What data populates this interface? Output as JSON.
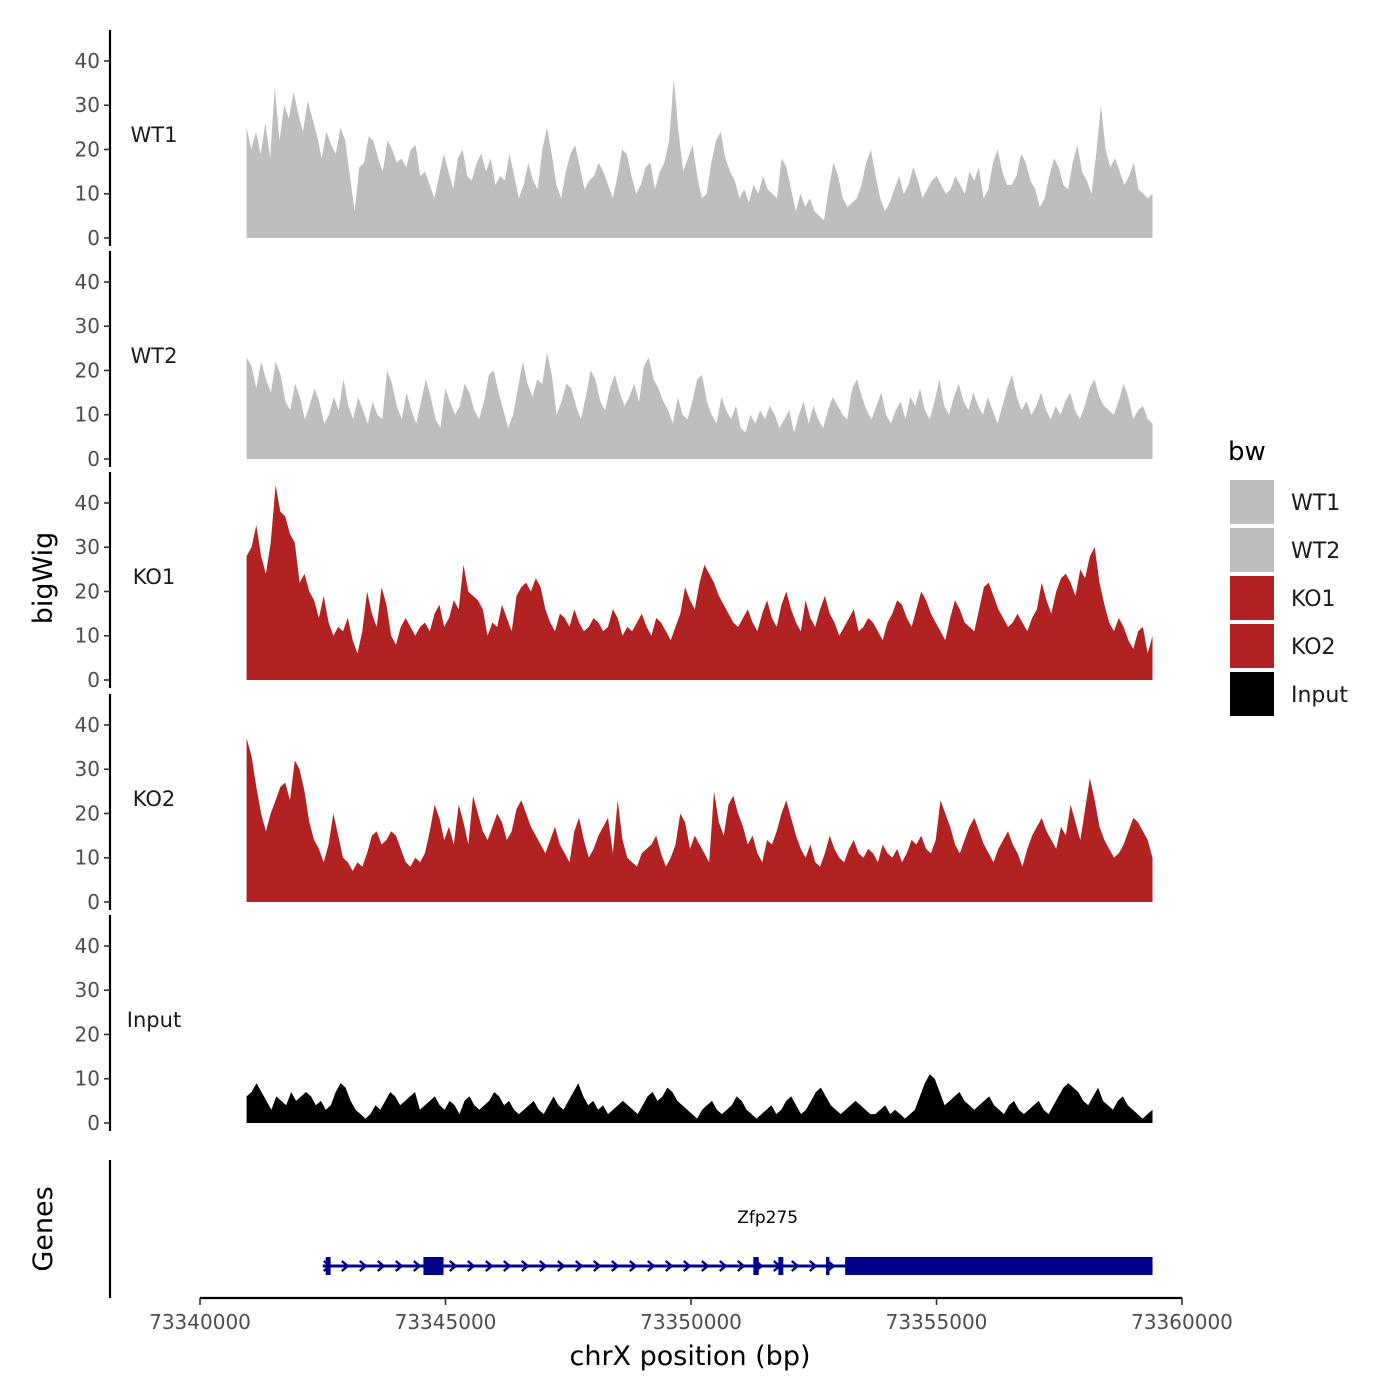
{
  "chart_data": {
    "type": "area",
    "y_axis_title": "bigWig",
    "x_axis_title": "chrX position (bp)",
    "genes_axis_title": "Genes",
    "xlim": [
      73340000,
      73360000
    ],
    "x_ticks": [
      73340000,
      73345000,
      73350000,
      73355000,
      73360000
    ],
    "x_tick_labels": [
      "73340000",
      "73345000",
      "73350000",
      "73355000",
      "73360000"
    ],
    "ylim": [
      0,
      47
    ],
    "y_ticks": [
      0,
      10,
      20,
      30,
      40
    ],
    "y_tick_labels": [
      "0",
      "10",
      "20",
      "30",
      "40"
    ],
    "data_x_range": [
      73340950,
      73359400
    ],
    "grid": false,
    "legend": {
      "title": "bw",
      "position": "right",
      "entries": [
        {
          "label": "WT1",
          "color": "#bebebe"
        },
        {
          "label": "WT2",
          "color": "#bebebe"
        },
        {
          "label": "KO1",
          "color": "#b22222"
        },
        {
          "label": "KO2",
          "color": "#b22222"
        },
        {
          "label": "Input",
          "color": "#000000"
        }
      ]
    },
    "series": [
      {
        "name": "WT1",
        "color": "#bebebe",
        "values": [
          25,
          20,
          24,
          19,
          26,
          18,
          34,
          22,
          30,
          27,
          33,
          28,
          24,
          31,
          27,
          23,
          18,
          24,
          21,
          19,
          25,
          22,
          14,
          6,
          16,
          17,
          23,
          22,
          18,
          15,
          22,
          20,
          17,
          18,
          16,
          20,
          21,
          14,
          15,
          12,
          9,
          14,
          19,
          15,
          11,
          18,
          20,
          14,
          13,
          17,
          19,
          15,
          18,
          12,
          14,
          13,
          19,
          14,
          9,
          12,
          17,
          13,
          11,
          20,
          25,
          19,
          12,
          9,
          15,
          19,
          21,
          16,
          11,
          13,
          14,
          17,
          15,
          12,
          9,
          14,
          20,
          19,
          14,
          10,
          12,
          16,
          17,
          11,
          15,
          17,
          22,
          36,
          24,
          15,
          18,
          21,
          14,
          9,
          10,
          17,
          22,
          24,
          18,
          15,
          13,
          9,
          11,
          8,
          12,
          10,
          14,
          11,
          10,
          9,
          18,
          16,
          11,
          6,
          10,
          7,
          9,
          6,
          5,
          4,
          11,
          17,
          14,
          9,
          7,
          8,
          9,
          12,
          17,
          20,
          14,
          9,
          6,
          8,
          11,
          14,
          10,
          12,
          16,
          13,
          9,
          11,
          13,
          14,
          12,
          10,
          11,
          14,
          12,
          10,
          15,
          13,
          16,
          9,
          11,
          17,
          20,
          15,
          12,
          12,
          14,
          19,
          17,
          13,
          11,
          7,
          9,
          14,
          18,
          16,
          12,
          11,
          17,
          21,
          15,
          13,
          10,
          19,
          30,
          20,
          16,
          18,
          15,
          12,
          14,
          17,
          11,
          10,
          9,
          10
        ]
      },
      {
        "name": "WT2",
        "color": "#bebebe",
        "values": [
          23,
          21,
          16,
          22,
          18,
          15,
          22,
          19,
          13,
          11,
          17,
          14,
          9,
          12,
          16,
          13,
          8,
          10,
          14,
          11,
          18,
          12,
          9,
          14,
          11,
          8,
          13,
          10,
          9,
          20,
          17,
          12,
          9,
          15,
          11,
          8,
          13,
          18,
          14,
          9,
          7,
          16,
          13,
          10,
          12,
          17,
          15,
          11,
          9,
          13,
          19,
          20,
          15,
          11,
          7,
          10,
          16,
          22,
          17,
          14,
          18,
          17,
          24,
          19,
          10,
          13,
          17,
          16,
          12,
          9,
          14,
          20,
          18,
          13,
          11,
          16,
          19,
          15,
          12,
          14,
          17,
          13,
          21,
          23,
          18,
          16,
          13,
          11,
          8,
          14,
          10,
          9,
          13,
          18,
          19,
          13,
          10,
          8,
          14,
          11,
          9,
          12,
          7,
          6,
          10,
          8,
          11,
          9,
          12,
          10,
          7,
          9,
          11,
          6,
          10,
          13,
          8,
          12,
          9,
          7,
          11,
          14,
          12,
          10,
          9,
          16,
          18,
          14,
          11,
          9,
          12,
          15,
          10,
          8,
          11,
          13,
          9,
          14,
          12,
          16,
          11,
          9,
          13,
          18,
          12,
          10,
          14,
          17,
          13,
          11,
          15,
          12,
          10,
          14,
          11,
          8,
          12,
          16,
          19,
          14,
          11,
          13,
          10,
          12,
          15,
          11,
          9,
          12,
          10,
          13,
          15,
          11,
          9,
          12,
          16,
          18,
          14,
          12,
          11,
          10,
          13,
          17,
          14,
          9,
          11,
          12,
          9,
          8
        ]
      },
      {
        "name": "KO1",
        "color": "#b22222",
        "values": [
          28,
          30,
          35,
          28,
          24,
          31,
          44,
          38,
          37,
          33,
          31,
          22,
          24,
          20,
          18,
          14,
          19,
          13,
          10,
          12,
          11,
          14,
          9,
          6,
          11,
          20,
          15,
          12,
          21,
          17,
          10,
          8,
          12,
          14,
          12,
          10,
          12,
          13,
          11,
          15,
          17,
          12,
          14,
          18,
          16,
          26,
          20,
          19,
          18,
          16,
          10,
          13,
          12,
          17,
          14,
          11,
          19,
          21,
          22,
          20,
          23,
          21,
          16,
          13,
          11,
          15,
          14,
          12,
          16,
          13,
          11,
          12,
          14,
          13,
          11,
          12,
          16,
          14,
          10,
          12,
          11,
          13,
          15,
          12,
          10,
          14,
          13,
          11,
          9,
          12,
          15,
          21,
          18,
          16,
          22,
          26,
          24,
          22,
          19,
          17,
          15,
          13,
          12,
          14,
          16,
          13,
          11,
          15,
          18,
          14,
          12,
          17,
          20,
          16,
          13,
          11,
          18,
          14,
          12,
          16,
          19,
          15,
          13,
          10,
          12,
          14,
          16,
          11,
          12,
          14,
          13,
          11,
          9,
          13,
          15,
          18,
          17,
          14,
          12,
          16,
          20,
          18,
          15,
          13,
          11,
          9,
          14,
          18,
          16,
          13,
          12,
          11,
          16,
          21,
          22,
          19,
          16,
          14,
          12,
          13,
          15,
          13,
          11,
          14,
          16,
          22,
          18,
          15,
          20,
          23,
          24,
          22,
          19,
          25,
          23,
          28,
          30,
          22,
          17,
          13,
          11,
          14,
          12,
          9,
          7,
          11,
          12,
          6,
          10
        ]
      },
      {
        "name": "KO2",
        "color": "#b22222",
        "values": [
          37,
          33,
          26,
          20,
          16,
          20,
          23,
          26,
          27,
          23,
          32,
          30,
          25,
          18,
          14,
          12,
          9,
          13,
          20,
          15,
          10,
          9,
          7,
          9,
          8,
          11,
          15,
          16,
          13,
          14,
          16,
          15,
          12,
          9,
          8,
          10,
          9,
          11,
          16,
          22,
          19,
          14,
          17,
          13,
          22,
          18,
          13,
          24,
          20,
          16,
          14,
          17,
          20,
          18,
          14,
          16,
          21,
          23,
          20,
          17,
          15,
          13,
          11,
          14,
          17,
          13,
          11,
          9,
          16,
          19,
          14,
          10,
          12,
          15,
          17,
          19,
          11,
          23,
          14,
          10,
          9,
          8,
          11,
          12,
          13,
          15,
          11,
          8,
          10,
          13,
          20,
          18,
          12,
          15,
          13,
          11,
          9,
          25,
          18,
          15,
          22,
          24,
          20,
          17,
          13,
          15,
          11,
          9,
          14,
          13,
          16,
          20,
          23,
          19,
          15,
          12,
          10,
          13,
          9,
          8,
          11,
          15,
          12,
          10,
          9,
          12,
          14,
          11,
          10,
          12,
          11,
          9,
          13,
          11,
          10,
          12,
          9,
          11,
          14,
          13,
          15,
          12,
          11,
          14,
          23,
          20,
          17,
          13,
          11,
          14,
          17,
          19,
          16,
          13,
          11,
          9,
          12,
          14,
          16,
          13,
          11,
          8,
          12,
          15,
          17,
          19,
          16,
          14,
          12,
          17,
          15,
          22,
          18,
          14,
          21,
          28,
          23,
          17,
          14,
          12,
          10,
          11,
          13,
          16,
          19,
          18,
          16,
          14,
          10
        ]
      },
      {
        "name": "Input",
        "color": "#000000",
        "values": [
          6,
          7,
          9,
          7,
          5,
          3,
          6,
          5,
          4,
          7,
          5,
          6,
          7,
          6,
          4,
          5,
          3,
          4,
          7,
          9,
          8,
          5,
          3,
          2,
          1,
          2,
          4,
          3,
          5,
          7,
          6,
          4,
          5,
          6,
          7,
          3,
          4,
          5,
          6,
          4,
          3,
          5,
          4,
          2,
          5,
          6,
          4,
          3,
          4,
          5,
          7,
          6,
          4,
          5,
          3,
          2,
          3,
          4,
          5,
          3,
          2,
          4,
          6,
          4,
          3,
          5,
          7,
          9,
          6,
          4,
          5,
          3,
          4,
          2,
          3,
          4,
          5,
          4,
          3,
          2,
          4,
          6,
          7,
          5,
          6,
          8,
          7,
          5,
          4,
          3,
          2,
          1,
          3,
          4,
          5,
          3,
          2,
          3,
          4,
          6,
          5,
          3,
          2,
          1,
          2,
          3,
          4,
          2,
          3,
          5,
          6,
          4,
          2,
          3,
          5,
          7,
          8,
          6,
          4,
          3,
          2,
          3,
          4,
          5,
          4,
          3,
          2,
          2,
          3,
          4,
          2,
          3,
          2,
          1,
          2,
          3,
          6,
          9,
          11,
          10,
          7,
          4,
          5,
          6,
          7,
          5,
          4,
          3,
          4,
          5,
          6,
          4,
          3,
          2,
          4,
          5,
          3,
          2,
          3,
          4,
          5,
          3,
          2,
          4,
          6,
          8,
          9,
          8,
          7,
          5,
          4,
          6,
          8,
          5,
          4,
          3,
          5,
          6,
          4,
          3,
          2,
          1,
          2,
          3
        ]
      }
    ],
    "gene_track": {
      "gene_name": "Zfp275",
      "strand": "+",
      "color": "#00008b",
      "start": 73342500,
      "end": 73359400,
      "exons": [
        [
          73342560,
          73342660
        ],
        [
          73344550,
          73344960
        ],
        [
          73351270,
          73351380
        ],
        [
          73351780,
          73351880
        ],
        [
          73352750,
          73352820
        ],
        [
          73353140,
          73359400
        ]
      ]
    }
  }
}
